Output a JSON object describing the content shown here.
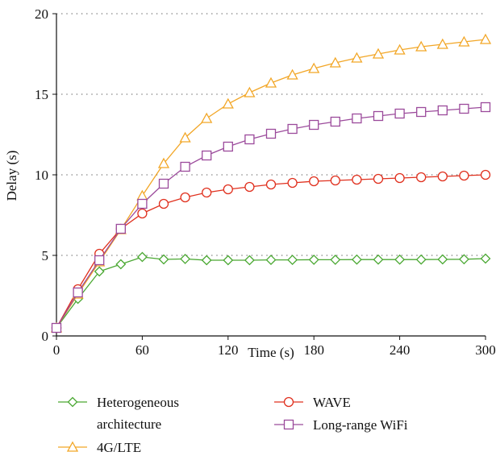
{
  "chart_data": {
    "type": "line",
    "title": "",
    "xlabel": "Time (s)",
    "ylabel": "Delay (s)",
    "xlim": [
      0,
      300
    ],
    "ylim": [
      0,
      20
    ],
    "xticks": [
      0,
      60,
      120,
      180,
      240,
      300
    ],
    "yticks": [
      0,
      5,
      10,
      15,
      20
    ],
    "grid": "horizontal-dotted",
    "legend_position": "bottom",
    "x": [
      0,
      15,
      30,
      45,
      60,
      75,
      90,
      105,
      120,
      135,
      150,
      165,
      180,
      195,
      210,
      225,
      240,
      255,
      270,
      285,
      300
    ],
    "series": [
      {
        "name": "Heterogeneous architecture",
        "legend_lines": [
          "Heterogeneous",
          "architecture"
        ],
        "color": "#4aa832",
        "marker": "diamond",
        "values": [
          0.5,
          2.3,
          4.0,
          4.45,
          4.9,
          4.75,
          4.78,
          4.7,
          4.7,
          4.7,
          4.72,
          4.72,
          4.73,
          4.73,
          4.74,
          4.74,
          4.74,
          4.74,
          4.75,
          4.76,
          4.8
        ]
      },
      {
        "name": "WAVE",
        "legend_lines": [
          "WAVE"
        ],
        "color": "#e0301e",
        "marker": "circle",
        "values": [
          0.5,
          2.9,
          5.1,
          6.65,
          7.6,
          8.2,
          8.6,
          8.9,
          9.1,
          9.25,
          9.4,
          9.5,
          9.6,
          9.65,
          9.7,
          9.75,
          9.8,
          9.85,
          9.9,
          9.95,
          10.0
        ]
      },
      {
        "name": "4G/LTE",
        "legend_lines": [
          "4G/LTE"
        ],
        "color": "#f2a626",
        "marker": "triangle",
        "values": [
          0.5,
          2.6,
          4.6,
          6.6,
          8.7,
          10.7,
          12.3,
          13.5,
          14.4,
          15.1,
          15.7,
          16.2,
          16.6,
          16.95,
          17.25,
          17.5,
          17.75,
          17.95,
          18.1,
          18.25,
          18.4
        ]
      },
      {
        "name": "Long-range WiFi",
        "legend_lines": [
          "Long-range WiFi"
        ],
        "color": "#9b4a9b",
        "marker": "square",
        "values": [
          0.5,
          2.7,
          4.7,
          6.65,
          8.2,
          9.45,
          10.5,
          11.2,
          11.75,
          12.2,
          12.55,
          12.85,
          13.1,
          13.3,
          13.5,
          13.65,
          13.8,
          13.9,
          14.0,
          14.1,
          14.2
        ]
      }
    ]
  }
}
